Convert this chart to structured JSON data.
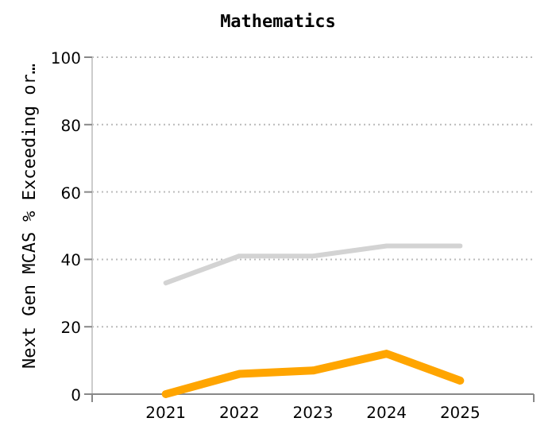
{
  "chart_data": {
    "type": "line",
    "title": "Mathematics",
    "ylabel": "Next Gen MCAS % Exceeding or…",
    "categories": [
      "2021",
      "2022",
      "2023",
      "2024",
      "2025"
    ],
    "series": [
      {
        "color": "#d3d3d3",
        "values": [
          33,
          41,
          41,
          44,
          44
        ]
      },
      {
        "color": "#ffa500",
        "values": [
          0,
          6,
          7,
          12,
          4
        ]
      }
    ],
    "ylim": [
      0,
      100
    ],
    "yticks": [
      0,
      20,
      40,
      60,
      80,
      100
    ],
    "grid": "y",
    "marker": "none",
    "line_style": "solid"
  }
}
